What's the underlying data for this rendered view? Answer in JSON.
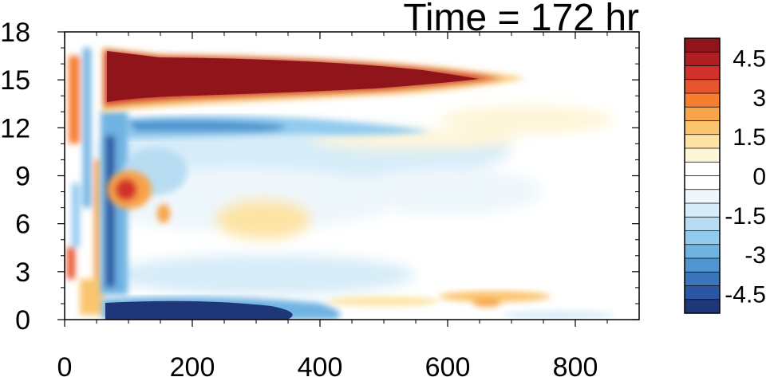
{
  "chart_data": {
    "type": "heatmap",
    "title": "Time = 172 hr",
    "xlabel": "",
    "ylabel": "",
    "x_range": [
      0,
      900
    ],
    "y_range": [
      0,
      18
    ],
    "x_ticks": [
      "0",
      "200",
      "400",
      "600",
      "800"
    ],
    "y_ticks": [
      "0",
      "3",
      "6",
      "9",
      "12",
      "15",
      "18"
    ],
    "colorbar": {
      "range": [
        -5.25,
        5.25
      ],
      "labels": [
        "4.5",
        "3",
        "1.5",
        "0",
        "-1.5",
        "-3",
        "-4.5"
      ],
      "colors_top_to_bottom": [
        "#8f151b",
        "#b01d22",
        "#d2302b",
        "#e8542d",
        "#f57e31",
        "#f9a34a",
        "#fbc56f",
        "#fde4a4",
        "#fef6d8",
        "#ffffff",
        "#ffffff",
        "#eef7fc",
        "#d6ecf8",
        "#b8ddf3",
        "#92cbee",
        "#6fb3e2",
        "#4f95d0",
        "#3a75bc",
        "#2b56a3",
        "#1d3778"
      ]
    },
    "features": [
      {
        "label": "strong positive band",
        "x": [
          60,
          650
        ],
        "y": [
          13.5,
          16.5
        ],
        "value": 5.0
      },
      {
        "label": "negative band near surface",
        "x": [
          60,
          400
        ],
        "y": [
          0,
          1.2
        ],
        "value": -4.5
      },
      {
        "label": "negative layer below positive band",
        "x": [
          60,
          520
        ],
        "y": [
          11.3,
          13.0
        ],
        "value": -2.5
      },
      {
        "label": "positive spot",
        "x": [
          80,
          130
        ],
        "y": [
          6.5,
          9.0
        ],
        "value": 3.5
      },
      {
        "label": "weak positive near-surface",
        "x": [
          420,
          740
        ],
        "y": [
          0.6,
          2.0
        ],
        "value": 1.0
      }
    ]
  }
}
